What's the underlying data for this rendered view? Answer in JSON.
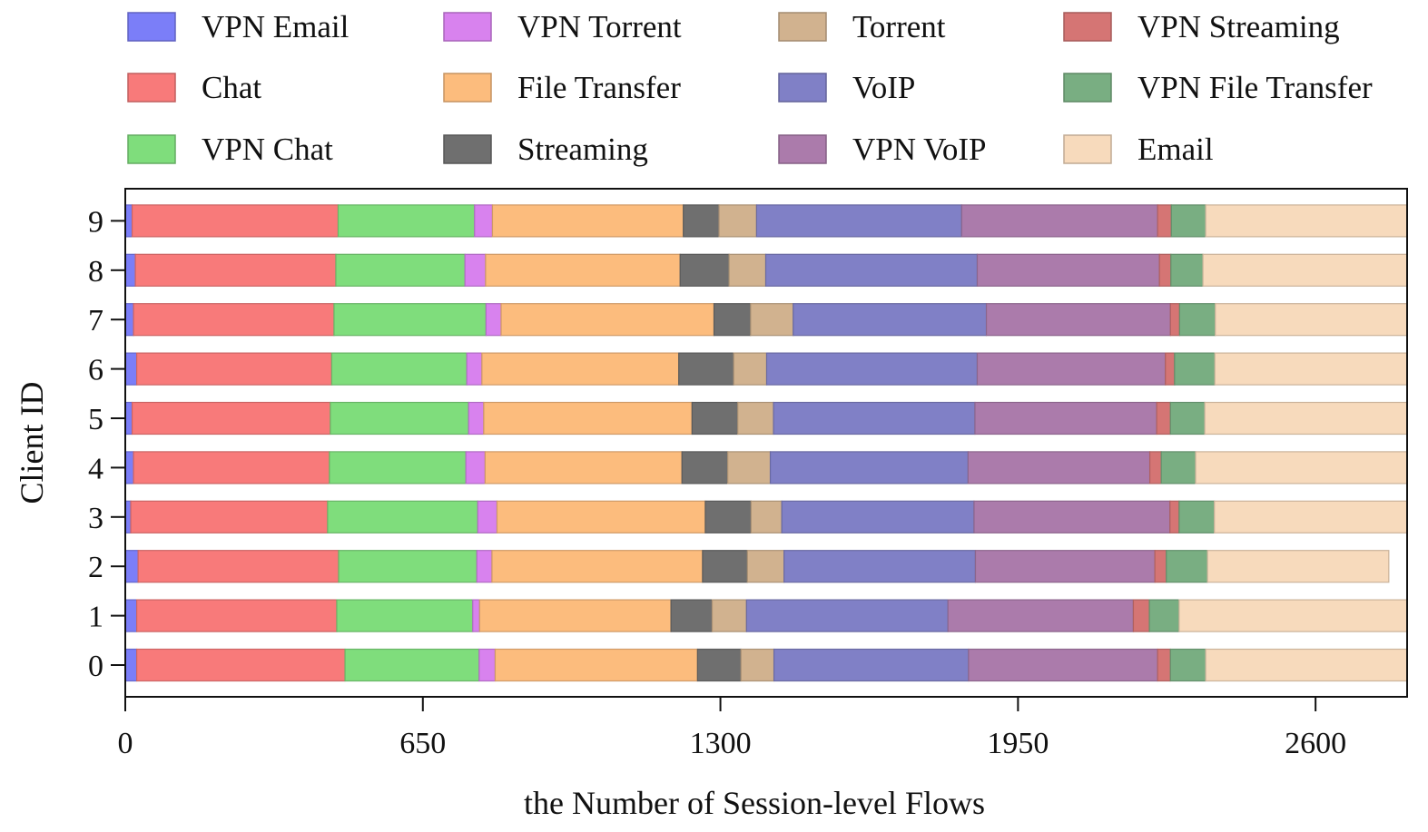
{
  "chart_data": {
    "type": "bar",
    "orientation": "horizontal",
    "stacked": true,
    "title": "",
    "xlabel": "the Number of Session-level Flows",
    "ylabel": "Client ID",
    "xlim": [
      0,
      2800
    ],
    "xticks": [
      0,
      650,
      1300,
      1950,
      2600
    ],
    "xtick_labels": [
      "0",
      "650",
      "1300",
      "1950",
      "2600"
    ],
    "categories": [
      "0",
      "1",
      "2",
      "3",
      "4",
      "5",
      "6",
      "7",
      "8",
      "9"
    ],
    "legend_position": "top",
    "series": [
      {
        "name": "VPN Email",
        "color": "#7b7ef8",
        "values": [
          25,
          25,
          28,
          12,
          18,
          15,
          25,
          18,
          22,
          15
        ]
      },
      {
        "name": "Chat",
        "color": "#f87a7a",
        "values": [
          455,
          437,
          438,
          430,
          428,
          433,
          426,
          438,
          438,
          450
        ]
      },
      {
        "name": "VPN Chat",
        "color": "#7fdd7c",
        "values": [
          293,
          297,
          302,
          328,
          298,
          302,
          295,
          332,
          282,
          298
        ]
      },
      {
        "name": "VPN Torrent",
        "color": "#d882ee",
        "values": [
          35,
          15,
          33,
          42,
          42,
          33,
          33,
          33,
          45,
          39
        ]
      },
      {
        "name": "File Transfer",
        "color": "#fcbc7d",
        "values": [
          442,
          418,
          460,
          455,
          430,
          455,
          430,
          465,
          425,
          417
        ]
      },
      {
        "name": "Streaming",
        "color": "#6f6f6f",
        "values": [
          95,
          90,
          98,
          100,
          100,
          100,
          120,
          80,
          107,
          78
        ]
      },
      {
        "name": "Torrent",
        "color": "#d1b28f",
        "values": [
          72,
          75,
          80,
          67,
          93,
          78,
          72,
          93,
          80,
          82
        ]
      },
      {
        "name": "VoIP",
        "color": "#8080c6",
        "values": [
          425,
          440,
          418,
          420,
          432,
          440,
          460,
          422,
          462,
          448
        ]
      },
      {
        "name": "VPN VoIP",
        "color": "#ab7bab",
        "values": [
          413,
          405,
          392,
          428,
          397,
          397,
          411,
          402,
          398,
          428
        ]
      },
      {
        "name": "VPN Streaming",
        "color": "#d57574",
        "values": [
          28,
          35,
          25,
          20,
          25,
          30,
          20,
          20,
          25,
          30
        ]
      },
      {
        "name": "VPN File Transfer",
        "color": "#79ae82",
        "values": [
          77,
          65,
          90,
          77,
          75,
          75,
          88,
          78,
          70,
          75
        ]
      },
      {
        "name": "Email",
        "color": "#f7dabc",
        "values": [
          440,
          498,
          396,
          421,
          462,
          442,
          420,
          419,
          446,
          440
        ]
      }
    ]
  }
}
